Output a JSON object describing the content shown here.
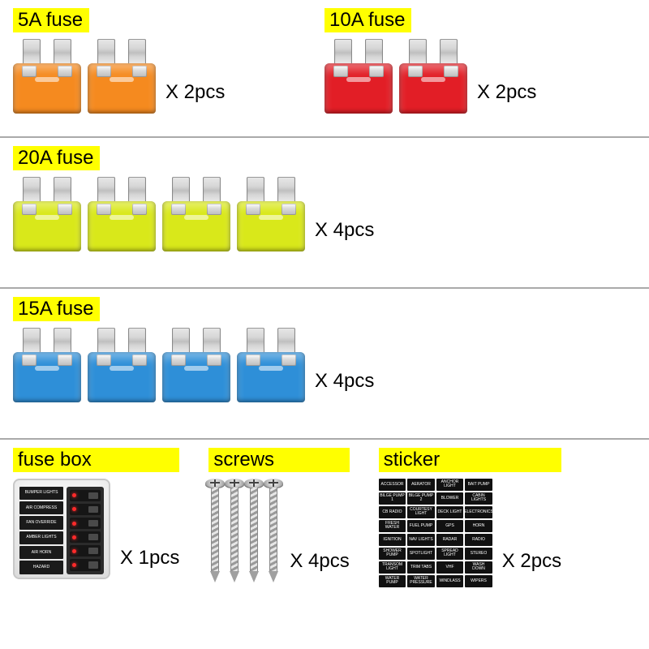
{
  "labels": {
    "fuse_5a": "5A fuse",
    "fuse_10a": "10A fuse",
    "fuse_20a": "20A fuse",
    "fuse_15a": "15A fuse",
    "fuse_box": "fuse box",
    "screws": "screws",
    "sticker": "sticker"
  },
  "qty": {
    "x2": "X 2pcs",
    "x4": "X 4pcs",
    "x1": "X 1pcs",
    "x2b": "X 2pcs"
  },
  "fuse_colors": {
    "5a": "#f58a1f",
    "10a": "#e21e26",
    "20a": "#d9e81a",
    "15a": "#2e8fd8"
  },
  "fusebox_labels": [
    "BUMPER LIGHTS",
    "AIR COMPRESS",
    "FAN OVERRIDE",
    "AMBER LIGHTS",
    "AIR HORN",
    "HAZARD"
  ],
  "sticker_cells": [
    "ACCESSOR",
    "AERATOR",
    "ANCHOR LIGHT",
    "BAIT PUMP",
    "BILGE PUMP 1",
    "BILGE PUMP 2",
    "BLOWER",
    "CABIN LIGHTS",
    "CB RADIO",
    "COURTESY LIGHT",
    "DECK LIGHT",
    "ELECTRONICS",
    "FRESH WATER",
    "FUEL PUMP",
    "GPS",
    "HORN",
    "IGNITION",
    "NAV LIGHTS",
    "RADAR",
    "RADIO",
    "SHOWER PUMP",
    "SPOTLIGHT",
    "SPREAD LIGHT",
    "STEREO",
    "TRANSOM LIGHT",
    "TRIM TABS",
    "VHF",
    "WASH DOWN",
    "WATER PUMP",
    "WATER PRESSURE",
    "WINDLASS",
    "WIPERS",
    "",
    "",
    "",
    ""
  ],
  "style": {
    "highlight_bg": "#ffff00",
    "divider_color": "#aaaaaa",
    "text_color": "#000000",
    "background": "#ffffff",
    "font_size_label": 24,
    "font_size_qty": 24
  }
}
